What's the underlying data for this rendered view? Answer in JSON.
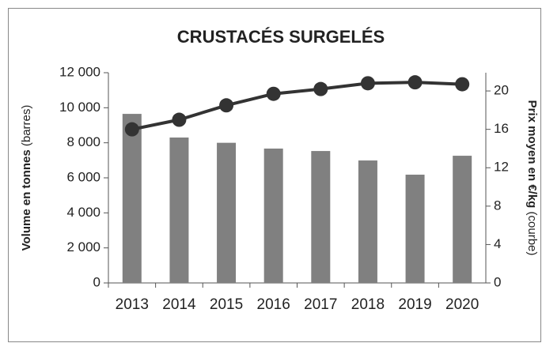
{
  "chart_data": {
    "type": "bar_line",
    "title": "CRUSTACÉS SURGELÉS",
    "ylabel": "Volume en tonnes",
    "ylabel_note": "(barres)",
    "y2label": "Prix moyen en €/kg",
    "y2label_note": "(courbe)",
    "categories": [
      "2013",
      "2014",
      "2015",
      "2016",
      "2017",
      "2018",
      "2019",
      "2020"
    ],
    "series": [
      {
        "name": "Volume",
        "type": "bar",
        "color": "#808080",
        "values": [
          9650,
          8300,
          8000,
          7670,
          7530,
          6990,
          6180,
          7260
        ]
      },
      {
        "name": "Prix moyen",
        "type": "line",
        "axis": "y2",
        "color": "#333333",
        "values": [
          16.0,
          17.0,
          18.5,
          19.7,
          20.2,
          20.8,
          20.9,
          20.7
        ]
      }
    ],
    "ylim": [
      0,
      12000
    ],
    "yticks": [
      0,
      {
        "value": 2000,
        "label": "2 000"
      },
      {
        "value": 4000,
        "label": "4 000"
      },
      {
        "value": 6000,
        "label": "6 000"
      },
      {
        "value": 8000,
        "label": "8 000"
      },
      {
        "value": 10000,
        "label": "10 000"
      },
      {
        "value": 12000,
        "label": "12 000"
      }
    ],
    "y2lim": [
      0,
      21.9
    ],
    "y2ticks": [
      0,
      4,
      8,
      12,
      16,
      20
    ]
  }
}
